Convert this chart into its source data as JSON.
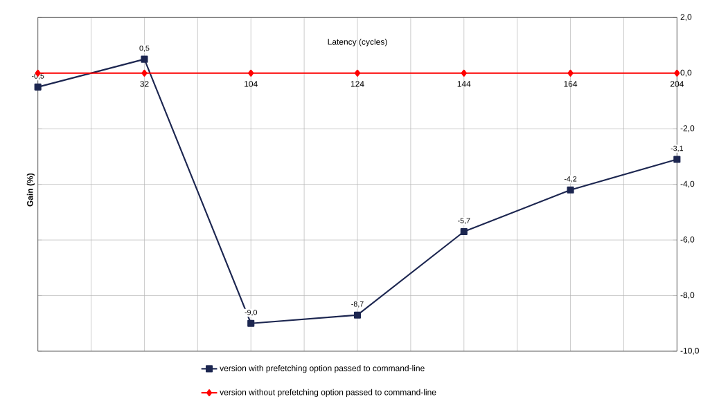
{
  "chart_data": {
    "type": "line",
    "xlabel": "Latency (cycles)",
    "ylabel": "Gain (%)",
    "categories": [
      null,
      "32",
      "104",
      "124",
      "144",
      "164",
      "204"
    ],
    "series": [
      {
        "name": "version with prefetching option passed to command-line",
        "color": "#1c2650",
        "marker": "square",
        "values": [
          -0.5,
          0.5,
          -9.0,
          -8.7,
          -5.7,
          -4.2,
          -3.1
        ],
        "value_labels": [
          "-0,5",
          "0,5",
          "-9,0",
          "-8,7",
          "-5,7",
          "-4,2",
          "-3,1"
        ]
      },
      {
        "name": "version without prefetching option passed to command-line",
        "color": "#ff0000",
        "marker": "diamond",
        "values": [
          0,
          0,
          0,
          0,
          0,
          0,
          0
        ]
      }
    ],
    "ylim": [
      -10,
      2
    ],
    "yticks": [
      {
        "value": 2,
        "label": "2,0"
      },
      {
        "value": 0,
        "label": "0,0"
      },
      {
        "value": -2,
        "label": "-2,0"
      },
      {
        "value": -4,
        "label": "-4,0"
      },
      {
        "value": -6,
        "label": "-6,0"
      },
      {
        "value": -8,
        "label": "-8,0"
      },
      {
        "value": -10,
        "label": "-10,0"
      }
    ],
    "grid": true,
    "legend": "bottom"
  }
}
